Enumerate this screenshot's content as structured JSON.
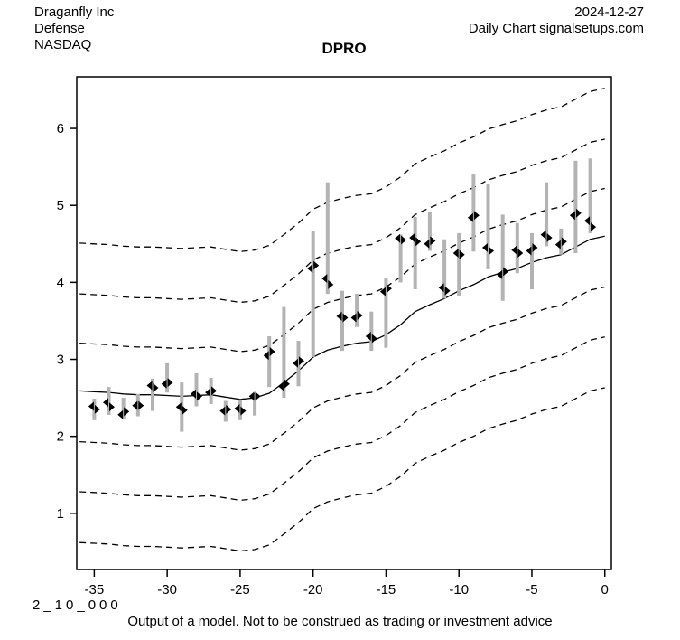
{
  "header": {
    "company": "Draganfly Inc",
    "sector": "Defense",
    "exchange": "NASDAQ",
    "date": "2024-12-27",
    "source_line": "Daily Chart signalsetups.com"
  },
  "title": "DPRO",
  "footer": {
    "model_code": "2_10_000",
    "disclaimer": "Output of a model. Not to be construed as trading or investment advice"
  },
  "chart_data": {
    "type": "line",
    "subtype": "hlc-price-bars-with-dashed-forecast-bands",
    "title": "DPRO",
    "xlabel": "",
    "ylabel": "",
    "x_ticks": [
      -35,
      -30,
      -25,
      -20,
      -15,
      -10,
      -5,
      0
    ],
    "y_ticks": [
      1,
      2,
      3,
      4,
      5,
      6
    ],
    "xlim": [
      -36.2,
      0.45
    ],
    "ylim": [
      0.27,
      6.67
    ],
    "grid": false,
    "legend": "none",
    "colors": {
      "background": "#ffffff",
      "range_bar": "#b3b3b3",
      "marker": "#000000",
      "center_line": "#000000",
      "band_line": "#000000",
      "text": "#000000"
    },
    "bars": [
      {
        "day": -35,
        "low": 2.21,
        "high": 2.49,
        "open": 2.39,
        "close": 2.35
      },
      {
        "day": -34,
        "low": 2.28,
        "high": 2.64,
        "open": 2.44,
        "close": 2.38
      },
      {
        "day": -33,
        "low": 2.22,
        "high": 2.5,
        "open": 2.28,
        "close": 2.32
      },
      {
        "day": -32,
        "low": 2.26,
        "high": 2.55,
        "open": 2.4,
        "close": 2.4
      },
      {
        "day": -31,
        "low": 2.33,
        "high": 2.75,
        "open": 2.66,
        "close": 2.63
      },
      {
        "day": -30,
        "low": 2.57,
        "high": 2.95,
        "open": 2.68,
        "close": 2.7
      },
      {
        "day": -29,
        "low": 2.06,
        "high": 2.7,
        "open": 2.38,
        "close": 2.34
      },
      {
        "day": -28,
        "low": 2.39,
        "high": 2.82,
        "open": 2.55,
        "close": 2.52
      },
      {
        "day": -27,
        "low": 2.42,
        "high": 2.76,
        "open": 2.57,
        "close": 2.59
      },
      {
        "day": -26,
        "low": 2.19,
        "high": 2.46,
        "open": 2.33,
        "close": 2.35
      },
      {
        "day": -25,
        "low": 2.21,
        "high": 2.48,
        "open": 2.36,
        "close": 2.33
      },
      {
        "day": -24,
        "low": 2.27,
        "high": 2.56,
        "open": 2.52,
        "close": 2.52
      },
      {
        "day": -23,
        "low": 2.64,
        "high": 3.3,
        "open": 3.05,
        "close": 3.1
      },
      {
        "day": -22,
        "low": 2.5,
        "high": 3.68,
        "open": 2.65,
        "close": 2.68
      },
      {
        "day": -21,
        "low": 2.65,
        "high": 3.24,
        "open": 2.95,
        "close": 2.98
      },
      {
        "day": -20,
        "low": 3.03,
        "high": 4.67,
        "open": 4.18,
        "close": 4.22
      },
      {
        "day": -19,
        "low": 3.85,
        "high": 5.3,
        "open": 4.05,
        "close": 3.97
      },
      {
        "day": -18,
        "low": 3.11,
        "high": 3.89,
        "open": 3.56,
        "close": 3.54
      },
      {
        "day": -17,
        "low": 3.42,
        "high": 3.85,
        "open": 3.54,
        "close": 3.57
      },
      {
        "day": -16,
        "low": 3.11,
        "high": 3.62,
        "open": 3.3,
        "close": 3.27
      },
      {
        "day": -15,
        "low": 3.15,
        "high": 4.05,
        "open": 3.88,
        "close": 3.92
      },
      {
        "day": -14,
        "low": 4.0,
        "high": 4.62,
        "open": 4.57,
        "close": 4.55
      },
      {
        "day": -13,
        "low": 3.91,
        "high": 4.85,
        "open": 4.58,
        "close": 4.53
      },
      {
        "day": -12,
        "low": 4.41,
        "high": 4.91,
        "open": 4.5,
        "close": 4.54
      },
      {
        "day": -11,
        "low": 3.79,
        "high": 4.56,
        "open": 3.93,
        "close": 3.89
      },
      {
        "day": -10,
        "low": 3.82,
        "high": 4.64,
        "open": 4.38,
        "close": 4.36
      },
      {
        "day": -9,
        "low": 4.4,
        "high": 5.4,
        "open": 4.84,
        "close": 4.87
      },
      {
        "day": -8,
        "low": 4.17,
        "high": 5.28,
        "open": 4.45,
        "close": 4.41
      },
      {
        "day": -7,
        "low": 3.76,
        "high": 4.88,
        "open": 4.1,
        "close": 4.14
      },
      {
        "day": -6,
        "low": 4.12,
        "high": 4.77,
        "open": 4.42,
        "close": 4.38
      },
      {
        "day": -5,
        "low": 3.91,
        "high": 4.64,
        "open": 4.41,
        "close": 4.45
      },
      {
        "day": -4,
        "low": 4.47,
        "high": 5.3,
        "open": 4.62,
        "close": 4.58
      },
      {
        "day": -3,
        "low": 4.36,
        "high": 4.7,
        "open": 4.49,
        "close": 4.53
      },
      {
        "day": -2,
        "low": 4.38,
        "high": 5.58,
        "open": 4.87,
        "close": 4.9
      },
      {
        "day": -1,
        "low": 4.64,
        "high": 5.61,
        "open": 4.8,
        "close": 4.72
      }
    ],
    "center_line": {
      "days": [
        -36,
        -35,
        -34,
        -33,
        -32,
        -31,
        -30,
        -29,
        -28,
        -27,
        -26,
        -25,
        -24,
        -23,
        -22,
        -21,
        -20,
        -19,
        -18,
        -17,
        -16,
        -15,
        -14,
        -13,
        -12,
        -11,
        -10,
        -9,
        -8,
        -7,
        -6,
        -5,
        -4,
        -3,
        -2,
        -1,
        0
      ],
      "values": [
        2.59,
        2.58,
        2.57,
        2.55,
        2.54,
        2.54,
        2.53,
        2.52,
        2.53,
        2.54,
        2.51,
        2.48,
        2.5,
        2.56,
        2.7,
        2.85,
        3.03,
        3.12,
        3.17,
        3.21,
        3.23,
        3.32,
        3.45,
        3.62,
        3.71,
        3.79,
        3.89,
        3.97,
        4.07,
        4.13,
        4.18,
        4.26,
        4.32,
        4.36,
        4.46,
        4.56,
        4.6
      ]
    },
    "band_offsets_above": [
      0.62,
      1.26,
      1.92
    ],
    "band_offsets_below": [
      0.66,
      1.31,
      1.97
    ],
    "band_style": "dashed"
  }
}
